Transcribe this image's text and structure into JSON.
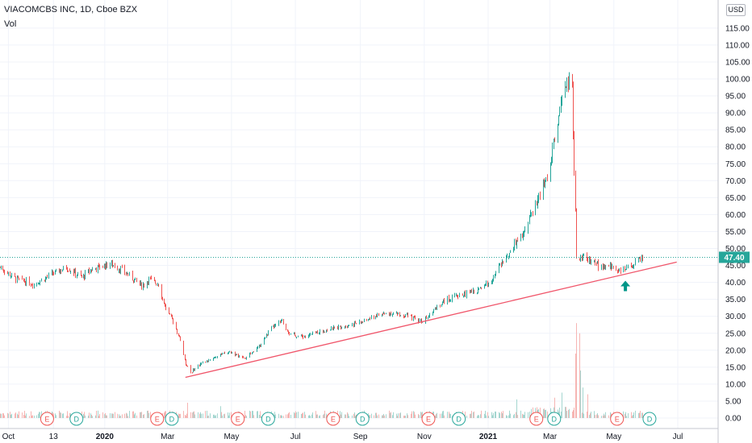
{
  "header": {
    "title": "VIACOMCBS INC, 1D, Cboe BZX",
    "volume_label": "Vol",
    "currency": "USD"
  },
  "colors": {
    "up": "#26a69a",
    "down": "#ef5350",
    "trendline": "#f0556a",
    "price_line": "#26a69a",
    "arrow": "#009688",
    "grid": "#f0f3fa",
    "axis_text": "#131722",
    "earnings_marker": "#ef5350",
    "dividend_marker": "#26a69a"
  },
  "chart_data": {
    "type": "candlestick",
    "symbol": "VIACOMCBS INC",
    "interval": "1D",
    "exchange": "Cboe BZX",
    "y_axis": {
      "ticks": [
        "115.00",
        "110.00",
        "105.00",
        "100.00",
        "95.00",
        "90.00",
        "85.00",
        "80.00",
        "75.00",
        "70.00",
        "65.00",
        "60.00",
        "55.00",
        "50.00",
        "45.00",
        "40.00",
        "35.00",
        "30.00",
        "25.00",
        "20.00",
        "15.00",
        "10.00",
        "5.00",
        "0.00"
      ],
      "ylim": [
        -3,
        122
      ]
    },
    "x_axis": {
      "labels": [
        "Oct",
        "13",
        "2020",
        "Mar",
        "May",
        "Jul",
        "Sep",
        "Nov",
        "2021",
        "Mar",
        "May",
        "Jul"
      ],
      "label_dates": [
        "2019-10-01",
        "2019-11-13",
        "2020-01-01",
        "2020-03-01",
        "2020-05-01",
        "2020-07-01",
        "2020-09-01",
        "2020-11-01",
        "2021-01-01",
        "2021-03-01",
        "2021-05-01",
        "2021-07-01"
      ]
    },
    "last_price": "47.40",
    "price_path": [
      [
        "2019-09-23",
        44.5
      ],
      [
        "2019-10-08",
        41.0
      ],
      [
        "2019-10-25",
        39.5
      ],
      [
        "2019-11-12",
        42.5
      ],
      [
        "2019-11-25",
        44.5
      ],
      [
        "2019-12-10",
        41.5
      ],
      [
        "2019-12-20",
        44.0
      ],
      [
        "2020-01-07",
        45.5
      ],
      [
        "2020-01-20",
        43.0
      ],
      [
        "2020-02-05",
        39.0
      ],
      [
        "2020-02-12",
        41.0
      ],
      [
        "2020-02-21",
        39.5
      ],
      [
        "2020-02-27",
        33.0
      ],
      [
        "2020-03-06",
        28.5
      ],
      [
        "2020-03-13",
        23.0
      ],
      [
        "2020-03-18",
        16.0
      ],
      [
        "2020-03-23",
        13.5
      ],
      [
        "2020-04-01",
        16.0
      ],
      [
        "2020-04-15",
        18.0
      ],
      [
        "2020-04-29",
        19.5
      ],
      [
        "2020-05-13",
        17.5
      ],
      [
        "2020-05-27",
        21.0
      ],
      [
        "2020-06-08",
        26.5
      ],
      [
        "2020-06-18",
        28.5
      ],
      [
        "2020-06-26",
        24.5
      ],
      [
        "2020-07-10",
        24.0
      ],
      [
        "2020-07-24",
        25.5
      ],
      [
        "2020-08-07",
        26.5
      ],
      [
        "2020-08-21",
        27.5
      ],
      [
        "2020-09-04",
        28.5
      ],
      [
        "2020-09-18",
        30.5
      ],
      [
        "2020-10-02",
        31.0
      ],
      [
        "2020-10-16",
        30.0
      ],
      [
        "2020-10-30",
        28.5
      ],
      [
        "2020-11-09",
        32.0
      ],
      [
        "2020-11-23",
        35.0
      ],
      [
        "2020-12-07",
        36.5
      ],
      [
        "2020-12-21",
        37.5
      ],
      [
        "2021-01-04",
        41.0
      ],
      [
        "2021-01-15",
        46.5
      ],
      [
        "2021-01-27",
        52.0
      ],
      [
        "2021-02-05",
        56.0
      ],
      [
        "2021-02-19",
        66.0
      ],
      [
        "2021-02-26",
        71.0
      ],
      [
        "2021-03-04",
        80.0
      ],
      [
        "2021-03-10",
        90.0
      ],
      [
        "2021-03-15",
        98.0
      ],
      [
        "2021-03-22",
        100.0
      ],
      [
        "2021-03-23",
        85.0
      ],
      [
        "2021-03-26",
        48.0
      ],
      [
        "2021-04-05",
        47.0
      ],
      [
        "2021-04-16",
        45.0
      ],
      [
        "2021-04-28",
        44.5
      ],
      [
        "2021-05-10",
        43.5
      ],
      [
        "2021-05-20",
        45.5
      ],
      [
        "2021-05-28",
        47.4
      ]
    ],
    "volume_spikes": [
      [
        "2021-01-28",
        5.5
      ],
      [
        "2021-03-05",
        6.0
      ],
      [
        "2021-03-12",
        7.5
      ],
      [
        "2021-03-25",
        19.0
      ],
      [
        "2021-03-26",
        28.0
      ],
      [
        "2021-03-29",
        25.0
      ],
      [
        "2021-03-30",
        14.0
      ],
      [
        "2021-04-01",
        9.0
      ],
      [
        "2021-04-06",
        7.0
      ],
      [
        "2020-03-20",
        4.5
      ],
      [
        "2020-04-20",
        3.5
      ]
    ],
    "trendline": {
      "start": [
        "2020-03-18",
        12.0
      ],
      "end": [
        "2021-06-30",
        46.0
      ]
    },
    "events": [
      {
        "type": "E",
        "date": "2019-11-07"
      },
      {
        "type": "D",
        "date": "2019-12-05"
      },
      {
        "type": "E",
        "date": "2020-02-20"
      },
      {
        "type": "D",
        "date": "2020-03-05"
      },
      {
        "type": "E",
        "date": "2020-05-07"
      },
      {
        "type": "D",
        "date": "2020-06-05"
      },
      {
        "type": "E",
        "date": "2020-08-06"
      },
      {
        "type": "D",
        "date": "2020-09-03"
      },
      {
        "type": "E",
        "date": "2020-11-05"
      },
      {
        "type": "D",
        "date": "2020-12-04"
      },
      {
        "type": "E",
        "date": "2021-02-16"
      },
      {
        "type": "D",
        "date": "2021-03-05"
      },
      {
        "type": "E",
        "date": "2021-05-04"
      },
      {
        "type": "D",
        "date": "2021-06-04"
      }
    ],
    "annotation": {
      "type": "arrow-up",
      "date": "2021-05-12",
      "value": 40.5
    }
  }
}
